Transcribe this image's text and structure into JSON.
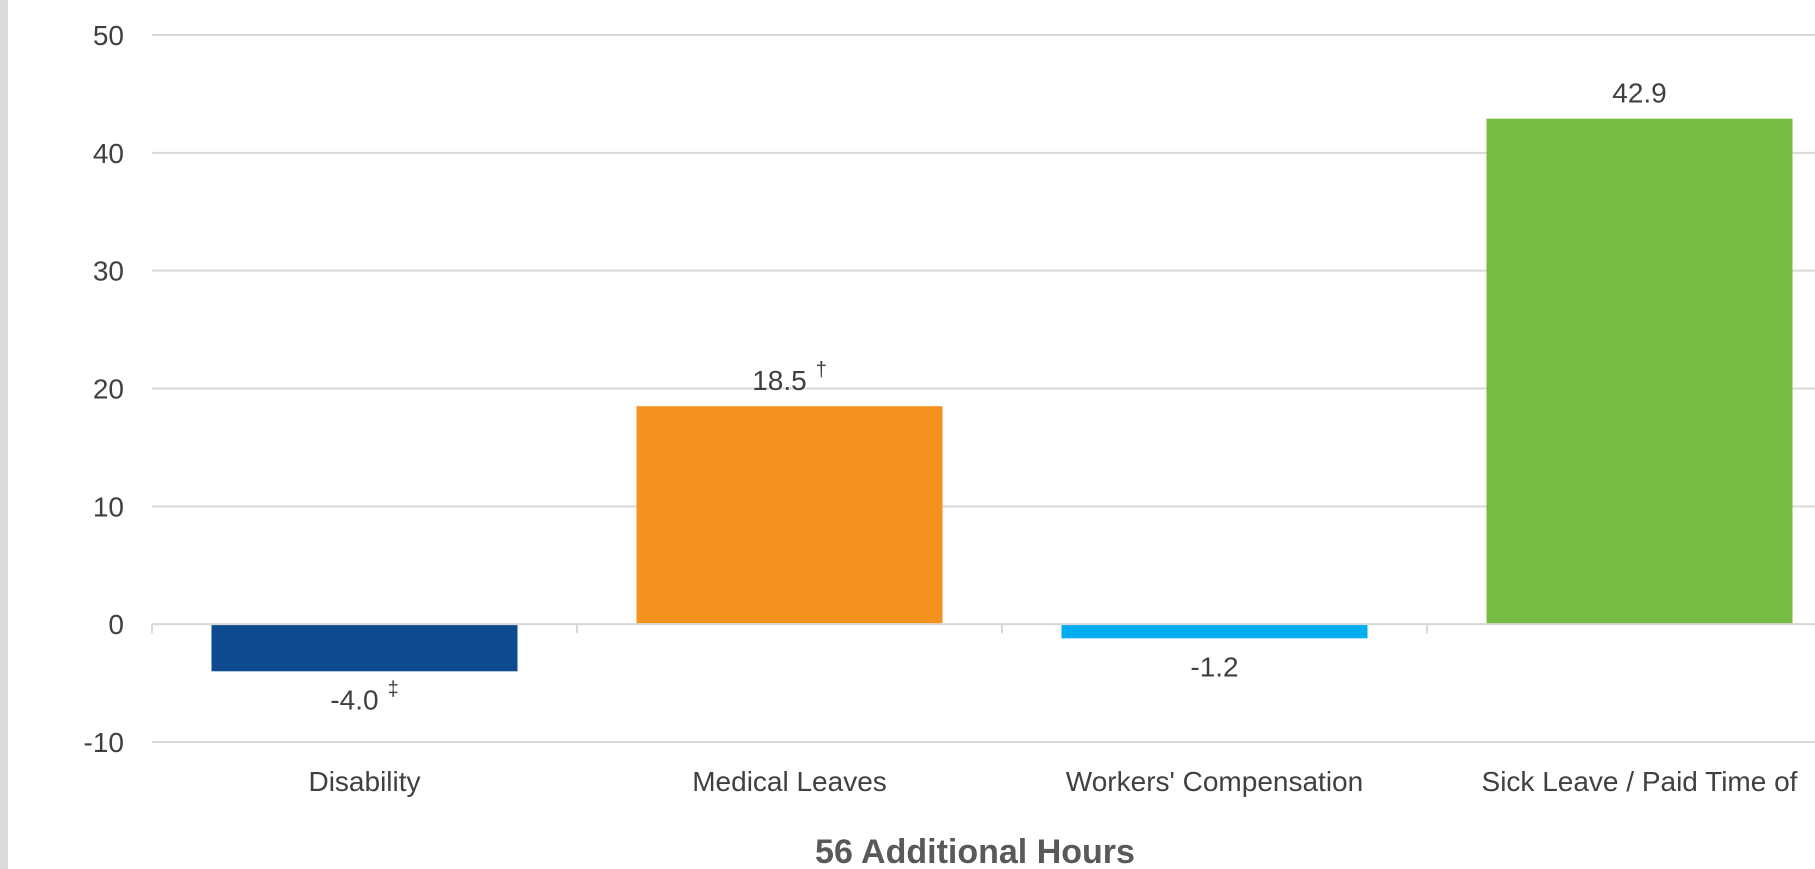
{
  "chart_data": {
    "type": "bar",
    "categories": [
      "Disability",
      "Medical Leaves",
      "Workers' Compensation",
      "Sick Leave / Paid Time of"
    ],
    "values": [
      -4.0,
      18.5,
      -1.2,
      42.9
    ],
    "data_labels": [
      "-4.0",
      "18.5",
      "-1.2",
      "42.9"
    ],
    "data_label_marks": [
      "‡",
      "†",
      "",
      ""
    ],
    "colors": [
      "#0e4a8f",
      "#f5921e",
      "#00aeef",
      "#76bc43"
    ],
    "title": "",
    "xlabel": "56 Additional Hours",
    "ylabel": "",
    "ylim": [
      -10,
      50
    ],
    "yticks": [
      -10,
      0,
      10,
      20,
      30,
      40,
      50
    ],
    "grid": true,
    "legend": "none"
  }
}
